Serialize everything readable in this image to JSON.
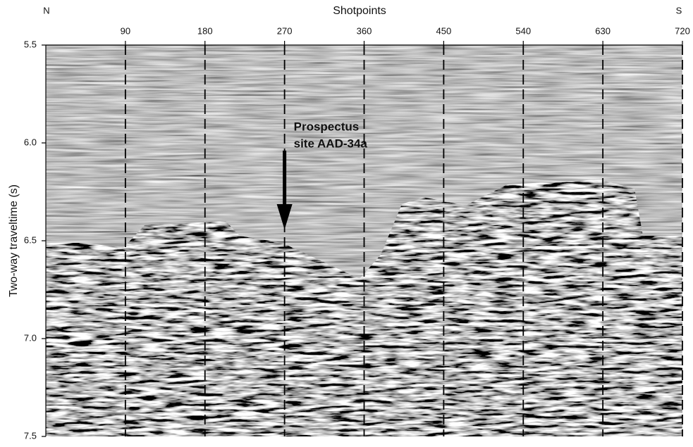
{
  "chart_data": {
    "type": "seismic-profile",
    "title": "Shotpoints",
    "left_label": "N",
    "right_label": "S",
    "ylabel": "Two-way traveltime (s)",
    "xlim": [
      0,
      720
    ],
    "xticks": [
      90,
      180,
      270,
      360,
      450,
      540,
      630,
      720
    ],
    "ylim": [
      5.5,
      7.5
    ],
    "yticks": [
      5.5,
      {
        "value": 6,
        "label": "6.0"
      },
      6.5,
      {
        "value": 7,
        "label": "7.0"
      },
      7.5
    ],
    "grid": true,
    "annotation": {
      "text": [
        "Prospectus",
        "site AAD-34a"
      ],
      "x": 270
    }
  }
}
